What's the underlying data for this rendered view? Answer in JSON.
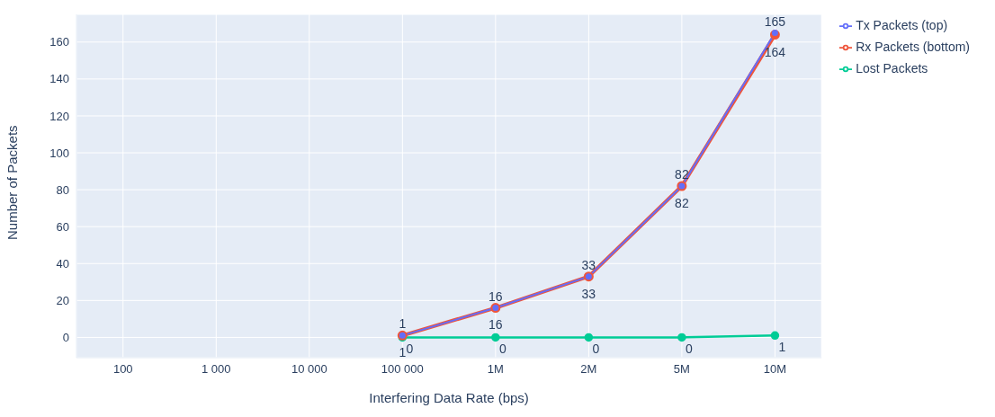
{
  "chart_data": {
    "type": "line",
    "xlabel": "Interfering Data Rate (bps)",
    "ylabel": "Number of Packets",
    "categories": [
      "100",
      "1 000",
      "10 000",
      "100 000",
      "1M",
      "2M",
      "5M",
      "10M"
    ],
    "series": [
      {
        "name": "Tx Packets (top)",
        "color": "#636efa",
        "values": [
          null,
          null,
          null,
          1,
          16,
          33,
          82,
          165
        ]
      },
      {
        "name": "Rx Packets (bottom)",
        "color": "#ef553b",
        "values": [
          null,
          null,
          null,
          1,
          16,
          33,
          82,
          164
        ]
      },
      {
        "name": "Lost Packets",
        "color": "#00cc96",
        "values": [
          null,
          null,
          null,
          0,
          0,
          0,
          0,
          1
        ]
      }
    ],
    "ylim": [
      -11,
      175
    ],
    "yticks": [
      0,
      20,
      40,
      60,
      80,
      100,
      120,
      140,
      160
    ],
    "grid": true,
    "legend": "top right",
    "marker": "circle",
    "line_style": "solid",
    "data_labels": true
  }
}
